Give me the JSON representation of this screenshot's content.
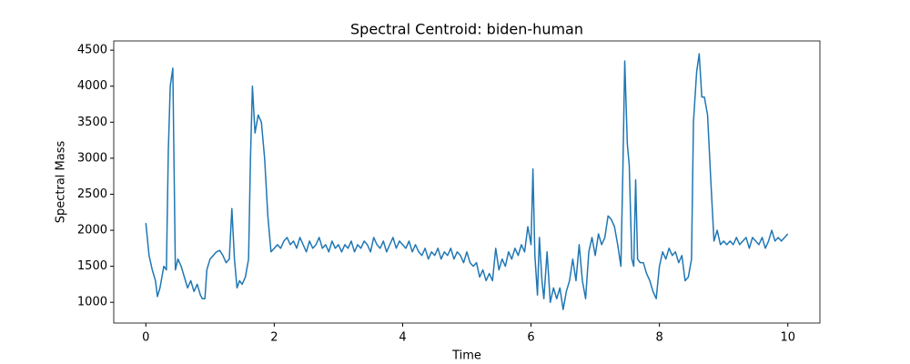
{
  "chart_data": {
    "type": "line",
    "title": "Spectral Centroid: biden-human",
    "x_label": "Time",
    "y_label": "Spectral Mass",
    "color": "#1f77b4",
    "x": [
      0.0,
      0.05,
      0.1,
      0.15,
      0.18,
      0.22,
      0.28,
      0.32,
      0.35,
      0.38,
      0.42,
      0.46,
      0.5,
      0.55,
      0.6,
      0.65,
      0.7,
      0.75,
      0.8,
      0.85,
      0.88,
      0.92,
      0.95,
      1.0,
      1.05,
      1.1,
      1.15,
      1.2,
      1.25,
      1.3,
      1.34,
      1.38,
      1.42,
      1.46,
      1.5,
      1.55,
      1.6,
      1.63,
      1.66,
      1.7,
      1.75,
      1.8,
      1.85,
      1.9,
      1.95,
      2.0,
      2.05,
      2.1,
      2.15,
      2.2,
      2.25,
      2.3,
      2.35,
      2.4,
      2.45,
      2.5,
      2.55,
      2.6,
      2.65,
      2.7,
      2.75,
      2.8,
      2.85,
      2.9,
      2.95,
      3.0,
      3.05,
      3.1,
      3.15,
      3.2,
      3.25,
      3.3,
      3.35,
      3.4,
      3.45,
      3.5,
      3.55,
      3.6,
      3.65,
      3.7,
      3.75,
      3.8,
      3.85,
      3.9,
      3.95,
      4.0,
      4.05,
      4.1,
      4.15,
      4.2,
      4.25,
      4.3,
      4.35,
      4.4,
      4.45,
      4.5,
      4.55,
      4.6,
      4.65,
      4.7,
      4.75,
      4.8,
      4.85,
      4.9,
      4.95,
      5.0,
      5.05,
      5.1,
      5.15,
      5.2,
      5.25,
      5.3,
      5.35,
      5.4,
      5.45,
      5.5,
      5.55,
      5.6,
      5.65,
      5.7,
      5.75,
      5.8,
      5.85,
      5.9,
      5.95,
      6.0,
      6.03,
      6.06,
      6.1,
      6.13,
      6.17,
      6.2,
      6.25,
      6.3,
      6.35,
      6.4,
      6.45,
      6.5,
      6.55,
      6.6,
      6.65,
      6.7,
      6.75,
      6.8,
      6.85,
      6.9,
      6.95,
      7.0,
      7.05,
      7.1,
      7.15,
      7.2,
      7.25,
      7.3,
      7.35,
      7.4,
      7.43,
      7.46,
      7.5,
      7.53,
      7.57,
      7.6,
      7.63,
      7.66,
      7.7,
      7.75,
      7.8,
      7.85,
      7.9,
      7.95,
      8.0,
      8.05,
      8.1,
      8.15,
      8.2,
      8.25,
      8.3,
      8.35,
      8.4,
      8.45,
      8.5,
      8.53,
      8.58,
      8.62,
      8.66,
      8.7,
      8.75,
      8.8,
      8.85,
      8.9,
      8.95,
      9.0,
      9.05,
      9.1,
      9.15,
      9.2,
      9.25,
      9.3,
      9.35,
      9.4,
      9.45,
      9.5,
      9.55,
      9.6,
      9.65,
      9.7,
      9.75,
      9.8,
      9.85,
      9.9,
      9.95,
      10.0
    ],
    "values": [
      2100,
      1650,
      1450,
      1300,
      1080,
      1200,
      1500,
      1450,
      3100,
      4000,
      4250,
      1450,
      1600,
      1500,
      1350,
      1200,
      1300,
      1150,
      1250,
      1100,
      1050,
      1050,
      1450,
      1600,
      1650,
      1700,
      1720,
      1650,
      1550,
      1600,
      2300,
      1600,
      1200,
      1300,
      1250,
      1350,
      1600,
      3000,
      4000,
      3350,
      3600,
      3500,
      3000,
      2200,
      1700,
      1750,
      1800,
      1750,
      1850,
      1900,
      1800,
      1850,
      1750,
      1900,
      1800,
      1700,
      1850,
      1750,
      1800,
      1900,
      1750,
      1800,
      1700,
      1850,
      1750,
      1800,
      1700,
      1800,
      1750,
      1850,
      1700,
      1800,
      1750,
      1850,
      1800,
      1700,
      1900,
      1800,
      1750,
      1850,
      1700,
      1800,
      1900,
      1750,
      1850,
      1800,
      1750,
      1850,
      1700,
      1800,
      1700,
      1650,
      1750,
      1600,
      1700,
      1650,
      1750,
      1600,
      1700,
      1650,
      1750,
      1600,
      1700,
      1650,
      1550,
      1700,
      1550,
      1500,
      1550,
      1350,
      1450,
      1300,
      1400,
      1300,
      1750,
      1450,
      1600,
      1500,
      1700,
      1600,
      1750,
      1650,
      1800,
      1700,
      2050,
      1800,
      2850,
      1650,
      1100,
      1900,
      1300,
      1050,
      1700,
      1000,
      1200,
      1050,
      1200,
      900,
      1150,
      1300,
      1600,
      1300,
      1800,
      1300,
      1050,
      1700,
      1900,
      1650,
      1950,
      1800,
      1900,
      2200,
      2150,
      2050,
      1800,
      1500,
      2800,
      4350,
      3200,
      2900,
      1600,
      1500,
      2700,
      1600,
      1550,
      1550,
      1400,
      1300,
      1150,
      1050,
      1500,
      1700,
      1600,
      1750,
      1650,
      1700,
      1550,
      1650,
      1300,
      1350,
      1600,
      3500,
      4200,
      4450,
      3850,
      3850,
      3600,
      2700,
      1850,
      2000,
      1800,
      1850,
      1800,
      1850,
      1800,
      1900,
      1800,
      1850,
      1900,
      1750,
      1900,
      1850,
      1800,
      1900,
      1750,
      1850,
      2000,
      1850,
      1900,
      1850,
      1900,
      1950
    ],
    "xlim": [
      -0.5,
      10.5
    ],
    "xticks": [
      0,
      2,
      4,
      6,
      8,
      10
    ],
    "ylim": [
      712,
      4628
    ],
    "yticks": [
      1000,
      1500,
      2000,
      2500,
      3000,
      3500,
      4000,
      4500
    ]
  }
}
